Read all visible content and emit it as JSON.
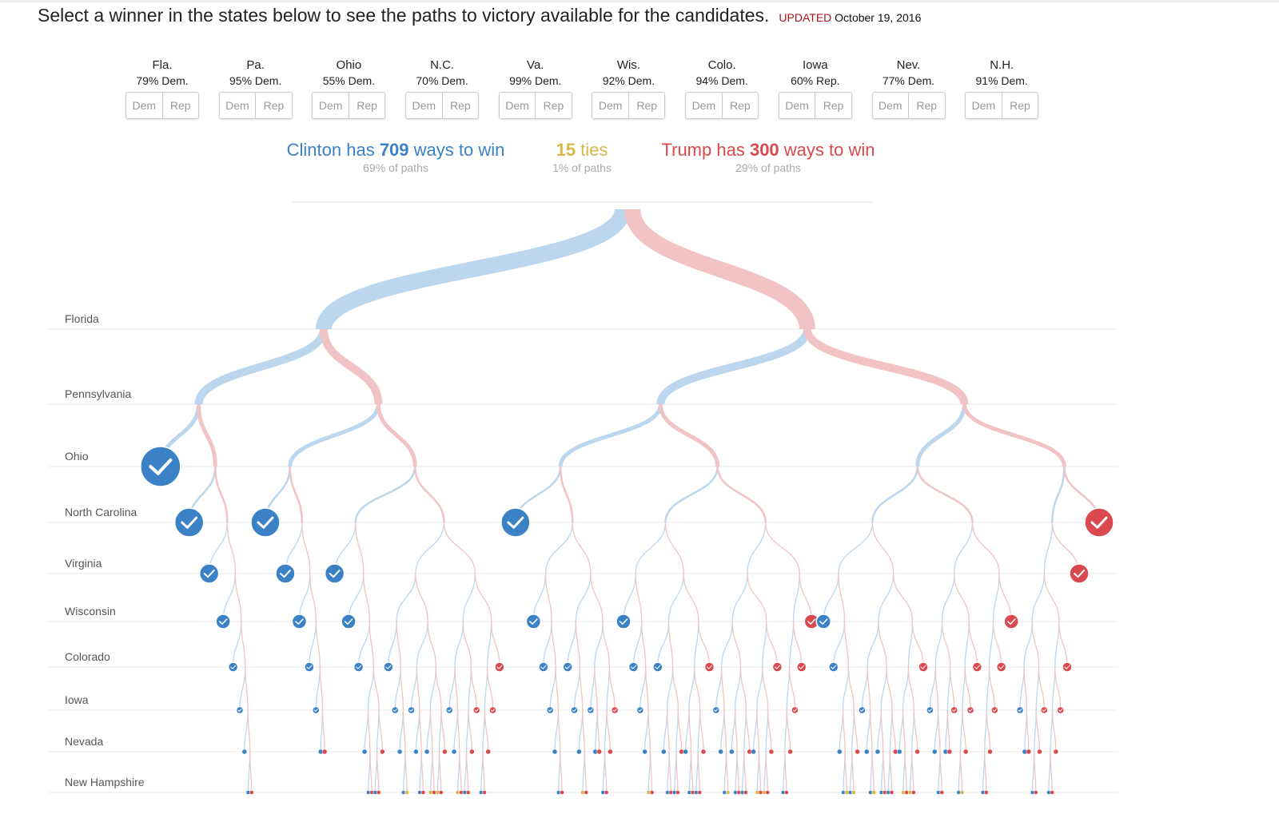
{
  "header": {
    "title": "Select a winner in the states below to see the paths to victory available for the candidates.",
    "updated_label": "UPDATED",
    "updated_date": "October 19, 2016"
  },
  "states": [
    {
      "short": "Fla.",
      "name": "Florida",
      "forecast": "79% Dem."
    },
    {
      "short": "Pa.",
      "name": "Pennsylvania",
      "forecast": "95% Dem."
    },
    {
      "short": "Ohio",
      "name": "Ohio",
      "forecast": "55% Dem."
    },
    {
      "short": "N.C.",
      "name": "North Carolina",
      "forecast": "70% Dem."
    },
    {
      "short": "Va.",
      "name": "Virginia",
      "forecast": "99% Dem."
    },
    {
      "short": "Wis.",
      "name": "Wisconsin",
      "forecast": "92% Dem."
    },
    {
      "short": "Colo.",
      "name": "Colorado",
      "forecast": "94% Dem."
    },
    {
      "short": "Iowa",
      "name": "Iowa",
      "forecast": "60% Rep."
    },
    {
      "short": "Nev.",
      "name": "Nevada",
      "forecast": "77% Dem."
    },
    {
      "short": "N.H.",
      "name": "New Hampshire",
      "forecast": "91% Dem."
    }
  ],
  "buttons": {
    "dem": "Dem",
    "rep": "Rep"
  },
  "summary": {
    "clinton": {
      "pre": "Clinton has ",
      "count": "709",
      "post": " ways to win",
      "share": "69% of paths"
    },
    "ties": {
      "count": "15",
      "post": " ties",
      "share": "1% of paths"
    },
    "trump": {
      "pre": "Trump has ",
      "count": "300",
      "post": " ways to win",
      "share": "29% of paths"
    }
  },
  "colors": {
    "dem": "#3a81c6",
    "rep": "#d9494e",
    "tie": "#d9b64a",
    "dem_light": "#bcd6ee",
    "rep_light": "#f1c3c5"
  }
}
